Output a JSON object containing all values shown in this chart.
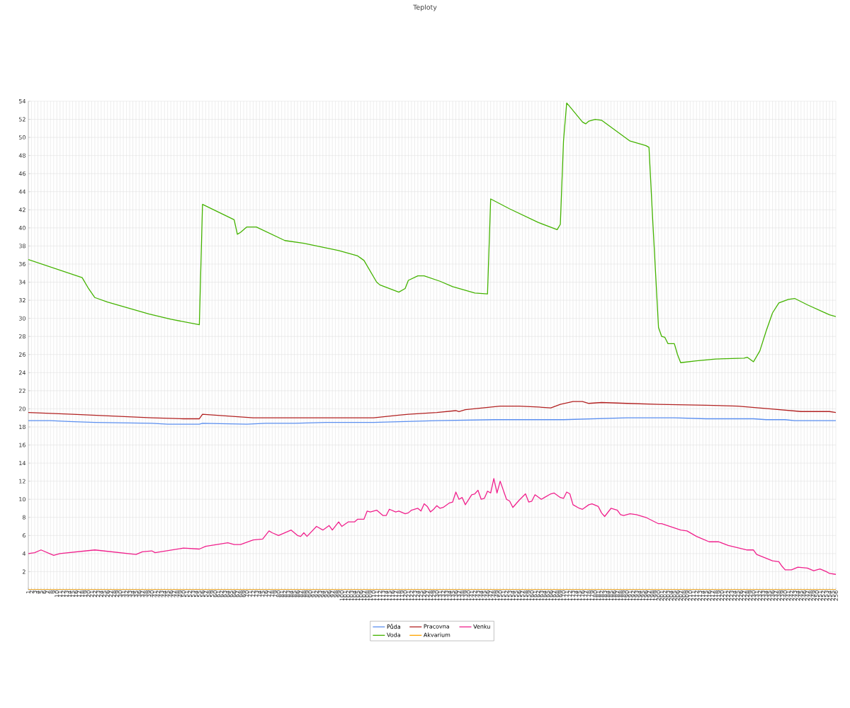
{
  "chart_data": {
    "type": "line",
    "title": "Teploty",
    "xlim": [
      1,
      256
    ],
    "xticks": [
      1,
      2,
      3,
      4,
      5,
      6,
      7,
      8,
      9,
      10,
      11,
      12,
      13,
      14,
      15,
      16,
      17,
      18,
      19,
      20,
      21,
      22,
      23,
      24,
      25,
      26,
      27,
      28,
      29,
      30,
      31,
      32,
      33,
      34,
      35,
      36,
      37,
      38,
      39,
      40,
      41,
      42,
      43,
      44,
      45,
      46,
      47,
      48,
      49,
      50,
      51,
      52,
      53,
      54,
      55,
      56,
      57,
      58,
      59,
      60,
      61,
      62,
      63,
      64,
      65,
      66,
      67,
      68,
      69,
      70,
      71,
      72,
      73,
      74,
      75,
      76,
      77,
      78,
      79,
      80,
      81,
      82,
      83,
      84,
      85,
      86,
      87,
      88,
      89,
      90,
      91,
      92,
      93,
      94,
      95,
      96,
      97,
      98,
      99,
      100,
      101,
      102,
      103,
      104,
      105,
      106,
      107,
      108,
      109,
      110,
      111,
      112,
      113,
      114,
      115,
      116,
      117,
      118,
      119,
      120,
      121,
      122,
      123,
      124,
      125,
      126,
      127,
      128,
      129,
      130,
      131,
      132,
      133,
      134,
      135,
      136,
      137,
      138,
      139,
      140,
      141,
      142,
      143,
      144,
      145,
      146,
      147,
      148,
      149,
      150,
      151,
      152,
      153,
      154,
      155,
      156,
      157,
      158,
      159,
      160,
      161,
      162,
      163,
      164,
      165,
      166,
      167,
      168,
      169,
      170,
      171,
      172,
      173,
      174,
      175,
      176,
      177,
      178,
      179,
      180,
      181,
      182,
      183,
      184,
      185,
      186,
      187,
      188,
      189,
      190,
      191,
      192,
      193,
      194,
      195,
      196,
      197,
      198,
      199,
      200,
      201,
      202,
      203,
      204,
      205,
      206,
      207,
      208,
      209,
      210,
      211,
      212,
      213,
      214,
      215,
      216,
      217,
      218,
      219,
      220,
      221,
      222,
      223,
      224,
      225,
      226,
      227,
      228,
      229,
      230,
      231,
      232,
      233,
      234,
      235,
      236,
      237,
      238,
      239,
      240,
      241,
      242,
      243,
      244,
      245,
      246,
      247,
      248,
      249,
      250,
      251,
      252,
      253,
      254,
      255,
      256
    ],
    "ylim": [
      0,
      54
    ],
    "yticks": [
      {
        "value": 0,
        "label": null
      },
      2,
      4,
      6,
      8,
      10,
      12,
      14,
      16,
      18,
      20,
      22,
      24,
      26,
      28,
      30,
      32,
      34,
      36,
      38,
      40,
      42,
      44,
      46,
      48,
      50,
      52,
      54
    ],
    "grid": true,
    "legend": "bottom",
    "line_style": "solid",
    "series": [
      {
        "name": "Půda",
        "color": "#5b8ff0",
        "x": [
          1,
          8,
          14,
          22,
          40,
          45,
          55,
          56,
          70,
          76,
          85,
          95,
          110,
          120,
          130,
          148,
          170,
          190,
          205,
          215,
          230,
          234,
          240,
          243,
          256
        ],
        "values": [
          18.7,
          18.7,
          18.6,
          18.5,
          18.4,
          18.3,
          18.3,
          18.4,
          18.3,
          18.4,
          18.4,
          18.5,
          18.5,
          18.6,
          18.7,
          18.8,
          18.8,
          19.0,
          19.0,
          18.9,
          18.9,
          18.8,
          18.8,
          18.7,
          18.7
        ]
      },
      {
        "name": "Pracovna",
        "color": "#b22222",
        "x": [
          1,
          15,
          40,
          50,
          55,
          56,
          60,
          68,
          72,
          110,
          118,
          121,
          130,
          136,
          137,
          139,
          150,
          156,
          162,
          166,
          169,
          173,
          176,
          178,
          182,
          190,
          200,
          215,
          225,
          235,
          245,
          254,
          256
        ],
        "values": [
          19.6,
          19.4,
          19.0,
          18.9,
          18.9,
          19.4,
          19.3,
          19.1,
          19.0,
          19.0,
          19.3,
          19.4,
          19.6,
          19.8,
          19.7,
          19.9,
          20.3,
          20.3,
          20.2,
          20.1,
          20.5,
          20.8,
          20.8,
          20.6,
          20.7,
          20.6,
          20.5,
          20.4,
          20.3,
          20.0,
          19.7,
          19.7,
          19.6
        ]
      },
      {
        "name": "Venku",
        "color": "#f0208c",
        "x": [
          1,
          3,
          5,
          9,
          11,
          22,
          35,
          37,
          40,
          41,
          50,
          55,
          57,
          64,
          66,
          68,
          72,
          75,
          77,
          78,
          80,
          84,
          86,
          87,
          88,
          89,
          92,
          94,
          96,
          97,
          99,
          100,
          102,
          104,
          105,
          107,
          108,
          109,
          111,
          113,
          114,
          115,
          117,
          118,
          120,
          121,
          122,
          124,
          125,
          126,
          127,
          128,
          129,
          130,
          131,
          132,
          134,
          135,
          136,
          137,
          138,
          139,
          141,
          142,
          143,
          144,
          145,
          146,
          147,
          148,
          149,
          150,
          152,
          153,
          154,
          156,
          158,
          159,
          160,
          161,
          163,
          164,
          166,
          167,
          169,
          170,
          171,
          172,
          173,
          175,
          176,
          178,
          179,
          181,
          182,
          183,
          185,
          187,
          188,
          189,
          191,
          193,
          196,
          200,
          201,
          207,
          209,
          212,
          216,
          219,
          222,
          228,
          230,
          231,
          236,
          238,
          239,
          240,
          242,
          244,
          247,
          249,
          251,
          253,
          254,
          256
        ],
        "values": [
          4.0,
          4.1,
          4.4,
          3.8,
          4.0,
          4.4,
          3.9,
          4.2,
          4.3,
          4.1,
          4.6,
          4.5,
          4.8,
          5.2,
          5.0,
          5.0,
          5.5,
          5.6,
          6.5,
          6.3,
          6.0,
          6.6,
          6.0,
          5.9,
          6.3,
          5.9,
          7.0,
          6.6,
          7.1,
          6.6,
          7.5,
          7.0,
          7.5,
          7.5,
          7.8,
          7.8,
          8.7,
          8.6,
          8.8,
          8.2,
          8.2,
          8.9,
          8.6,
          8.7,
          8.4,
          8.5,
          8.8,
          9.0,
          8.7,
          9.5,
          9.2,
          8.6,
          8.9,
          9.3,
          9.0,
          9.1,
          9.6,
          9.7,
          10.8,
          10.0,
          10.2,
          9.4,
          10.5,
          10.6,
          11.0,
          10.0,
          10.1,
          10.9,
          10.7,
          12.3,
          10.7,
          12.0,
          10.0,
          9.8,
          9.1,
          9.9,
          10.6,
          9.7,
          9.8,
          10.5,
          10.0,
          10.2,
          10.6,
          10.7,
          10.2,
          10.1,
          10.8,
          10.6,
          9.4,
          9.0,
          8.9,
          9.4,
          9.5,
          9.2,
          8.5,
          8.1,
          9.0,
          8.8,
          8.3,
          8.2,
          8.4,
          8.3,
          8.0,
          7.3,
          7.3,
          6.6,
          6.5,
          5.9,
          5.3,
          5.3,
          4.9,
          4.4,
          4.4,
          3.9,
          3.2,
          3.1,
          2.6,
          2.2,
          2.2,
          2.5,
          2.4,
          2.1,
          2.3,
          2.0,
          1.8,
          1.7
        ]
      },
      {
        "name": "Voda",
        "color": "#44b300",
        "x": [
          1,
          18,
          20,
          22,
          26,
          39,
          46,
          55,
          56,
          66,
          67,
          68,
          70,
          73,
          82,
          88,
          99,
          105,
          107,
          111,
          112,
          118,
          120,
          121,
          124,
          126,
          131,
          135,
          142,
          146,
          147,
          153,
          162,
          168,
          169,
          170,
          171,
          172,
          176,
          177,
          178,
          180,
          182,
          191,
          196,
          197,
          198,
          200,
          201,
          202,
          203,
          205,
          206,
          207,
          212,
          218,
          227,
          228,
          230,
          232,
          234,
          236,
          238,
          241,
          243,
          247,
          252,
          254,
          256
        ],
        "values": [
          36.5,
          34.5,
          33.3,
          32.3,
          31.8,
          30.5,
          29.9,
          29.3,
          42.6,
          40.9,
          39.3,
          39.5,
          40.1,
          40.1,
          38.6,
          38.3,
          37.5,
          36.9,
          36.4,
          34.0,
          33.7,
          32.9,
          33.3,
          34.2,
          34.7,
          34.7,
          34.1,
          33.5,
          32.8,
          32.7,
          43.2,
          42.1,
          40.6,
          39.8,
          40.4,
          49.6,
          53.8,
          53.4,
          51.7,
          51.5,
          51.8,
          52.0,
          51.9,
          49.6,
          49.1,
          48.9,
          42.0,
          29.0,
          28.0,
          27.9,
          27.2,
          27.2,
          26.0,
          25.1,
          25.3,
          25.5,
          25.6,
          25.7,
          25.2,
          26.4,
          28.6,
          30.6,
          31.7,
          32.1,
          32.2,
          31.5,
          30.7,
          30.4,
          30.2
        ]
      },
      {
        "name": "Akvarium",
        "color": "#ffa500",
        "x": [
          1,
          256
        ],
        "values": [
          0,
          0
        ]
      }
    ]
  }
}
